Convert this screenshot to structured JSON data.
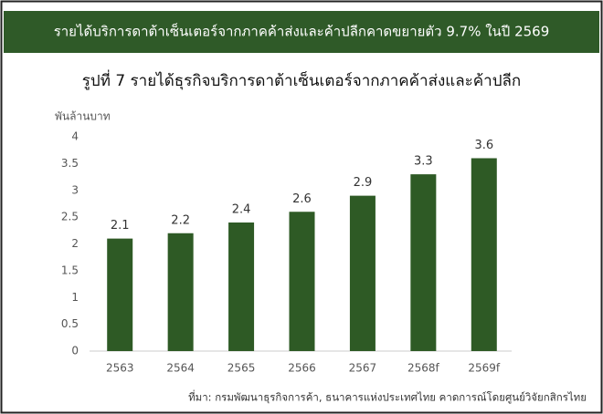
{
  "header": {
    "title": "รายได้บริการดาต้าเซ็นเตอร์จากภาคค้าส่งและค้าปลีกคาดขยายตัว 9.7% ในปี 2569"
  },
  "chart_data": {
    "type": "bar",
    "title": "รูปที่ 7 รายได้ธุรกิจบริการดาต้าเซ็นเตอร์จากภาคค้าส่งและค้าปลีก",
    "y_label": "พันล้านบาท",
    "categories": [
      "2563",
      "2564",
      "2565",
      "2566",
      "2567",
      "2568f",
      "2569f"
    ],
    "values": [
      2.1,
      2.2,
      2.4,
      2.6,
      2.9,
      3.3,
      3.6
    ],
    "color": "#2e5a25",
    "ylim": [
      0,
      4
    ],
    "yticks": [
      0,
      0.5,
      1,
      1.5,
      2,
      2.5,
      3,
      3.5,
      4
    ],
    "grid": false,
    "note": "ที่มา: กรมพัฒนาธุรกิจการค้า, ธนาคารแห่งประเทศไทย คาดการณ์โดยศูนย์วิจัยกสิกรไทย"
  }
}
